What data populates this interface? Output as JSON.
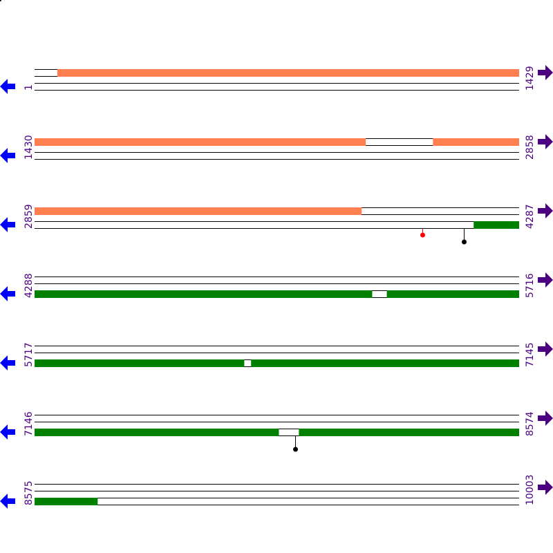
{
  "colors": {
    "top_track": "#ff7f50",
    "bottom_track": "#008000",
    "line": "#000000",
    "left_arrow": "#0000ff",
    "right_arrow": "#4b0082",
    "label": "#4b0082",
    "marker_red": "#ff0000",
    "marker_black": "#000000"
  },
  "icons": {
    "left": "arrow-left-icon",
    "right": "arrow-right-icon"
  },
  "rows": [
    {
      "start": "1",
      "end": "1429",
      "s": 1,
      "e": 1429,
      "top": [
        [
          68,
          1429
        ]
      ],
      "bottom": [],
      "markers": []
    },
    {
      "start": "1430",
      "end": "2858",
      "s": 1430,
      "e": 2858,
      "top": [
        [
          1430,
          2406
        ],
        [
          2604,
          2858
        ]
      ],
      "bottom": [],
      "markers": []
    },
    {
      "start": "2859",
      "end": "4287",
      "s": 2859,
      "e": 4287,
      "top": [
        [
          2859,
          3823
        ]
      ],
      "bottom": [
        [
          4153,
          4287
        ]
      ],
      "markers": [
        {
          "pos": 4001,
          "color": "red",
          "len": "short"
        },
        {
          "pos": 4125,
          "color": "black",
          "len": "long"
        }
      ]
    },
    {
      "start": "4288",
      "end": "5716",
      "s": 4288,
      "e": 5716,
      "top": [],
      "bottom": [
        [
          4288,
          5283
        ],
        [
          5326,
          5716
        ]
      ],
      "markers": []
    },
    {
      "start": "5717",
      "end": "7145",
      "s": 5717,
      "e": 7145,
      "top": [],
      "bottom": [
        [
          5717,
          6335
        ],
        [
          6355,
          7145
        ]
      ],
      "markers": []
    },
    {
      "start": "7146",
      "end": "8574",
      "s": 7146,
      "e": 8574,
      "top": [],
      "bottom": [
        [
          7146,
          7866
        ],
        [
          7925,
          8574
        ]
      ],
      "markers": [
        {
          "pos": 7915,
          "color": "black",
          "len": "long"
        }
      ]
    },
    {
      "start": "8575",
      "end": "10003",
      "s": 8575,
      "e": 10003,
      "top": [],
      "bottom": [
        [
          8575,
          8761
        ]
      ],
      "markers": []
    }
  ]
}
